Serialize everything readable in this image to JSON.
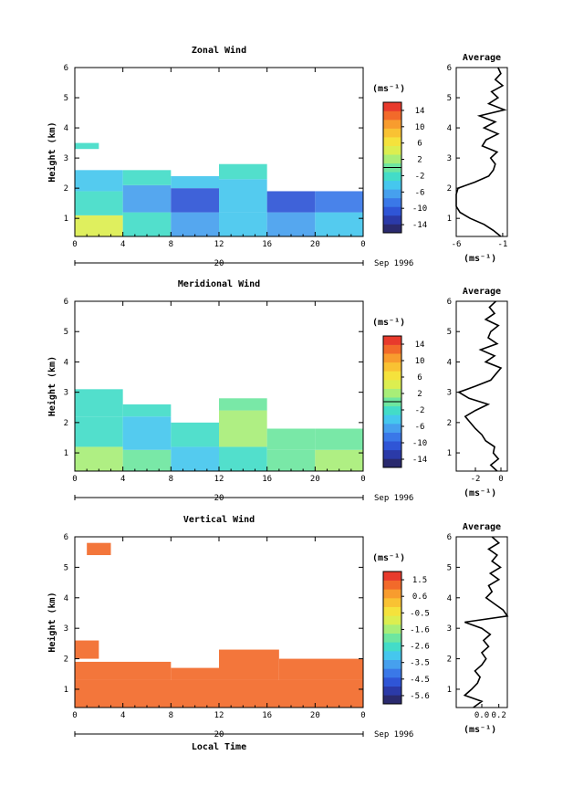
{
  "page": {
    "background": "#ffffff"
  },
  "chart_data": [
    {
      "type": "heatmap",
      "title": "Zonal Wind",
      "ylabel": "Height (km)",
      "xlabel": "",
      "x_ticks": [
        "0",
        "4",
        "8",
        "12",
        "16",
        "20",
        "0"
      ],
      "y_ticks": [
        "1",
        "2",
        "3",
        "4",
        "5",
        "6"
      ],
      "xlim": [
        0,
        24
      ],
      "ylim": [
        0.4,
        6.0
      ],
      "date_day": "20",
      "date_text": "Sep 1996",
      "colorbar": {
        "label": "(ms⁻¹)",
        "ticks": [
          "14",
          "10",
          "6",
          "2",
          "-2",
          "-6",
          "-10",
          "-14"
        ],
        "range": [
          -16,
          16
        ],
        "marker_value": 0
      },
      "cells": [
        {
          "x": [
            0,
            4
          ],
          "y": [
            0.4,
            1.1
          ],
          "v": 5
        },
        {
          "x": [
            4,
            8
          ],
          "y": [
            0.4,
            1.2
          ],
          "v": -3
        },
        {
          "x": [
            8,
            12
          ],
          "y": [
            0.4,
            1.2
          ],
          "v": -6
        },
        {
          "x": [
            12,
            16
          ],
          "y": [
            0.4,
            1.2
          ],
          "v": -4
        },
        {
          "x": [
            16,
            20
          ],
          "y": [
            0.4,
            1.2
          ],
          "v": -6
        },
        {
          "x": [
            20,
            24
          ],
          "y": [
            0.4,
            1.2
          ],
          "v": -4
        },
        {
          "x": [
            0,
            4
          ],
          "y": [
            1.1,
            1.9
          ],
          "v": -2
        },
        {
          "x": [
            4,
            8
          ],
          "y": [
            1.2,
            2.1
          ],
          "v": -7
        },
        {
          "x": [
            8,
            12
          ],
          "y": [
            1.2,
            2.0
          ],
          "v": -10
        },
        {
          "x": [
            12,
            16
          ],
          "y": [
            1.2,
            2.3
          ],
          "v": -5
        },
        {
          "x": [
            16,
            20
          ],
          "y": [
            1.2,
            1.9
          ],
          "v": -10
        },
        {
          "x": [
            20,
            24
          ],
          "y": [
            1.2,
            1.9
          ],
          "v": -8
        },
        {
          "x": [
            0,
            4
          ],
          "y": [
            1.9,
            2.6
          ],
          "v": -5
        },
        {
          "x": [
            4,
            8
          ],
          "y": [
            2.1,
            2.6
          ],
          "v": -3
        },
        {
          "x": [
            8,
            12
          ],
          "y": [
            2.0,
            2.4
          ],
          "v": -4
        },
        {
          "x": [
            12,
            16
          ],
          "y": [
            2.3,
            2.8
          ],
          "v": -2
        },
        {
          "x": [
            0,
            2
          ],
          "y": [
            3.3,
            3.5
          ],
          "v": -3
        }
      ],
      "average": {
        "x_ticks": [
          "-6",
          "-1"
        ],
        "xlim": [
          -6,
          -0.5
        ],
        "xlabel": "(ms⁻¹)",
        "title": "Average",
        "profile_height": [
          0.4,
          0.6,
          0.8,
          1.0,
          1.2,
          1.4,
          1.6,
          1.8,
          2.0,
          2.2,
          2.4,
          2.6,
          2.8,
          3.0,
          3.2,
          3.4,
          3.6,
          3.8,
          4.0,
          4.2,
          4.4,
          4.6,
          4.8,
          5.0,
          5.2,
          5.4,
          5.6,
          5.8,
          6.0
        ],
        "profile_value": [
          -1.2,
          -2.0,
          -3.0,
          -4.5,
          -5.6,
          -6.0,
          -6.0,
          -6.0,
          -5.8,
          -4.0,
          -2.5,
          -2.0,
          -1.8,
          -2.3,
          -1.6,
          -3.2,
          -2.8,
          -1.5,
          -3.0,
          -1.8,
          -3.5,
          -0.8,
          -2.5,
          -1.5,
          -2.2,
          -1.0,
          -1.8,
          -1.2,
          -1.5
        ]
      }
    },
    {
      "type": "heatmap",
      "title": "Meridional Wind",
      "ylabel": "Height (km)",
      "xlabel": "",
      "x_ticks": [
        "0",
        "4",
        "8",
        "12",
        "16",
        "20",
        "0"
      ],
      "y_ticks": [
        "1",
        "2",
        "3",
        "4",
        "5",
        "6"
      ],
      "xlim": [
        0,
        24
      ],
      "ylim": [
        0.4,
        6.0
      ],
      "date_day": "20",
      "date_text": "Sep 1996",
      "colorbar": {
        "label": "(ms⁻¹)",
        "ticks": [
          "14",
          "10",
          "6",
          "2",
          "-2",
          "-6",
          "-10",
          "-14"
        ],
        "range": [
          -16,
          16
        ],
        "marker_value": 0
      },
      "cells": [
        {
          "x": [
            0,
            4
          ],
          "y": [
            0.4,
            1.2
          ],
          "v": 2
        },
        {
          "x": [
            4,
            8
          ],
          "y": [
            0.4,
            1.1
          ],
          "v": -1
        },
        {
          "x": [
            8,
            12
          ],
          "y": [
            0.4,
            1.2
          ],
          "v": -5
        },
        {
          "x": [
            12,
            16
          ],
          "y": [
            0.4,
            1.2
          ],
          "v": -3
        },
        {
          "x": [
            16,
            20
          ],
          "y": [
            0.4,
            1.1
          ],
          "v": 1
        },
        {
          "x": [
            20,
            24
          ],
          "y": [
            0.4,
            1.1
          ],
          "v": 2
        },
        {
          "x": [
            0,
            4
          ],
          "y": [
            1.2,
            2.2
          ],
          "v": -3
        },
        {
          "x": [
            4,
            8
          ],
          "y": [
            1.1,
            2.2
          ],
          "v": -4
        },
        {
          "x": [
            8,
            12
          ],
          "y": [
            1.2,
            2.0
          ],
          "v": -3
        },
        {
          "x": [
            12,
            16
          ],
          "y": [
            1.2,
            2.4
          ],
          "v": 3
        },
        {
          "x": [
            16,
            20
          ],
          "y": [
            1.1,
            1.8
          ],
          "v": 1
        },
        {
          "x": [
            20,
            24
          ],
          "y": [
            1.1,
            1.8
          ],
          "v": -1
        },
        {
          "x": [
            0,
            4
          ],
          "y": [
            2.2,
            3.1
          ],
          "v": -2
        },
        {
          "x": [
            4,
            8
          ],
          "y": [
            2.2,
            2.6
          ],
          "v": -3
        },
        {
          "x": [
            12,
            16
          ],
          "y": [
            2.4,
            2.8
          ],
          "v": 1
        }
      ],
      "average": {
        "x_ticks": [
          "-2",
          "0"
        ],
        "xlim": [
          -3.5,
          0.5
        ],
        "xlabel": "(ms⁻¹)",
        "title": "Average",
        "profile_height": [
          0.4,
          0.6,
          0.8,
          1.0,
          1.2,
          1.4,
          1.6,
          1.8,
          2.0,
          2.2,
          2.4,
          2.6,
          2.8,
          3.0,
          3.2,
          3.4,
          3.6,
          3.8,
          4.0,
          4.2,
          4.4,
          4.6,
          4.8,
          5.0,
          5.2,
          5.4,
          5.6,
          5.8,
          6.0
        ],
        "profile_value": [
          -0.3,
          -0.8,
          -0.2,
          -0.6,
          -0.5,
          -1.2,
          -1.5,
          -2.0,
          -2.4,
          -2.8,
          -2.0,
          -1.0,
          -2.5,
          -3.3,
          -2.0,
          -0.8,
          -0.4,
          0.0,
          -1.2,
          -0.5,
          -1.6,
          -0.3,
          -1.0,
          -0.8,
          -0.2,
          -1.2,
          -0.5,
          -0.9,
          -0.4
        ]
      }
    },
    {
      "type": "heatmap",
      "title": "Vertical Wind",
      "ylabel": "Height (km)",
      "xlabel": "Local Time",
      "x_ticks": [
        "0",
        "4",
        "8",
        "12",
        "16",
        "20",
        "0"
      ],
      "y_ticks": [
        "1",
        "2",
        "3",
        "4",
        "5",
        "6"
      ],
      "xlim": [
        0,
        24
      ],
      "ylim": [
        0.4,
        6.0
      ],
      "date_day": "20",
      "date_text": "Sep 1996",
      "colorbar": {
        "label": "(ms⁻¹)",
        "ticks": [
          "1.5",
          "0.6",
          "-0.5",
          "-1.6",
          "-2.6",
          "-3.5",
          "-4.5",
          "-5.6"
        ],
        "range": [
          -6,
          2
        ]
      },
      "cells": [
        {
          "x": [
            0,
            24
          ],
          "y": [
            0.4,
            1.3
          ],
          "v": 1.1
        },
        {
          "x": [
            0,
            8
          ],
          "y": [
            1.3,
            1.9
          ],
          "v": 1.3
        },
        {
          "x": [
            8,
            12
          ],
          "y": [
            1.3,
            1.7
          ],
          "v": 1.1
        },
        {
          "x": [
            12,
            17
          ],
          "y": [
            1.3,
            2.3
          ],
          "v": 1.3
        },
        {
          "x": [
            17,
            24
          ],
          "y": [
            1.3,
            2.0
          ],
          "v": 1.1
        },
        {
          "x": [
            0,
            2
          ],
          "y": [
            2.0,
            2.6
          ],
          "v": 1.0
        },
        {
          "x": [
            1,
            3
          ],
          "y": [
            5.4,
            5.8
          ],
          "v": 1.0
        }
      ],
      "average": {
        "x_ticks": [
          "0.0",
          "0.2"
        ],
        "xlim": [
          -0.3,
          0.3
        ],
        "xlabel": "(ms⁻¹)",
        "title": "Average",
        "profile_height": [
          0.4,
          0.6,
          0.8,
          1.0,
          1.2,
          1.4,
          1.6,
          1.8,
          2.0,
          2.2,
          2.4,
          2.6,
          2.8,
          3.0,
          3.2,
          3.4,
          3.6,
          3.8,
          4.0,
          4.2,
          4.4,
          4.6,
          4.8,
          5.0,
          5.2,
          5.4,
          5.6,
          5.8,
          6.0
        ],
        "profile_value": [
          -0.1,
          0.0,
          -0.2,
          -0.12,
          -0.05,
          -0.02,
          -0.08,
          0.0,
          0.05,
          0.0,
          0.08,
          0.02,
          0.1,
          0.0,
          -0.2,
          0.3,
          0.25,
          0.15,
          0.05,
          0.12,
          0.08,
          0.2,
          0.1,
          0.22,
          0.12,
          0.18,
          0.08,
          0.2,
          0.12
        ]
      }
    }
  ]
}
